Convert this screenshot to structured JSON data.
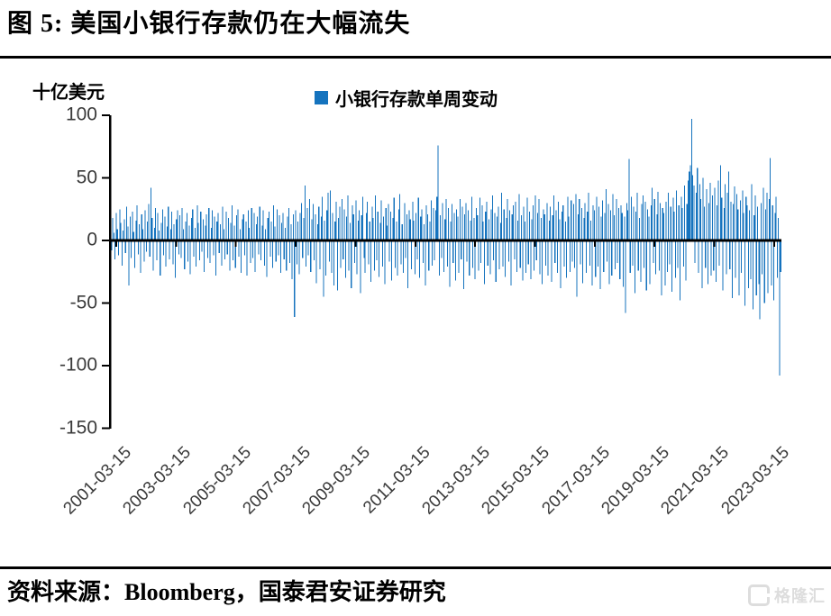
{
  "page": {
    "title": "图 5:  美国小银行存款仍在大幅流失",
    "source": "资料来源：Bloomberg，国泰君安证券研究",
    "watermark": "格隆汇"
  },
  "chart_data": {
    "type": "bar",
    "title": "美国小银行存款仍在大幅流失",
    "unit_label": "十亿美元",
    "legend": [
      "小银行存款单周变动"
    ],
    "legend_position": "top-center",
    "bar_color": "#1573BE",
    "axis_color": "#000000",
    "grid": false,
    "ylim": [
      -150,
      100
    ],
    "yticks": [
      100,
      50,
      0,
      -50,
      -100,
      -150
    ],
    "xlabel": "",
    "ylabel": "十亿美元",
    "frequency": "weekly",
    "x_start": "2001-01",
    "x_end": "2023-05",
    "xticklabels": [
      "2001-03-15",
      "2003-03-15",
      "2005-03-15",
      "2007-03-15",
      "2009-03-15",
      "2011-03-15",
      "2013-03-15",
      "2015-03-15",
      "2017-03-15",
      "2019-03-15",
      "2021-03-15",
      "2023-03-15"
    ],
    "notable_points": {
      "2011_surge": 76,
      "2020_covid_surge": 97,
      "2023_svb_outflow": -108,
      "2007_outflow": -61,
      "2023_rebound": 66
    },
    "values": [
      12,
      -8,
      18,
      6,
      -15,
      22,
      9,
      -12,
      25,
      14,
      -20,
      8,
      17,
      -10,
      27,
      11,
      -36,
      19,
      -14,
      23,
      7,
      -22,
      16,
      28,
      -11,
      13,
      -26,
      21,
      9,
      -17,
      24,
      -9,
      15,
      29,
      -13,
      42,
      18,
      -24,
      10,
      26,
      -16,
      22,
      8,
      -28,
      14,
      25,
      -12,
      19,
      -21,
      11,
      27,
      -15,
      9,
      23,
      -19,
      13,
      -30,
      17,
      24,
      -11,
      20,
      -14,
      26,
      9,
      -23,
      15,
      22,
      -17,
      12,
      -27,
      18,
      25,
      -13,
      10,
      -21,
      28,
      14,
      -16,
      23,
      -9,
      17,
      -25,
      12,
      21,
      -14,
      26,
      -18,
      10,
      24,
      -12,
      19,
      -28,
      15,
      22,
      -10,
      13,
      -20,
      27,
      9,
      -15,
      23,
      -11,
      18,
      -24,
      14,
      28,
      -16,
      12,
      -22,
      20,
      25,
      -13,
      9,
      -26,
      17,
      21,
      -12,
      15,
      -28,
      24,
      10,
      -18,
      26,
      -14,
      22,
      -25,
      13,
      19,
      -11,
      27,
      -16,
      12,
      24,
      -20,
      9,
      -29,
      18,
      23,
      -13,
      15,
      -22,
      28,
      11,
      -17,
      25,
      -12,
      20,
      -26,
      14,
      22,
      -15,
      10,
      -24,
      19,
      26,
      -18,
      13,
      -31,
      21,
      -61,
      24,
      -19,
      15,
      -27,
      22,
      30,
      -14,
      18,
      44,
      -21,
      26,
      -12,
      33,
      -25,
      17,
      29,
      -16,
      21,
      -34,
      13,
      27,
      -23,
      19,
      35,
      -45,
      16,
      -28,
      24,
      38,
      -17,
      40,
      -26,
      22,
      -36,
      15,
      31,
      -40,
      18,
      27,
      -22,
      33,
      -15,
      25,
      -30,
      19,
      36,
      -24,
      14,
      -38,
      28,
      21,
      -18,
      32,
      -27,
      16,
      24,
      -42,
      20,
      35,
      -14,
      -26,
      22,
      31,
      -19,
      15,
      -33,
      27,
      18,
      -24,
      36,
      -16,
      23,
      -29,
      14,
      32,
      -21,
      19,
      -35,
      26,
      12,
      29,
      -17,
      23,
      -32,
      18,
      34,
      -22,
      15,
      -28,
      25,
      37,
      -19,
      13,
      -26,
      30,
      -14,
      21,
      -38,
      24,
      17,
      -23,
      31,
      16,
      -27,
      22,
      -15,
      34,
      -30,
      19,
      25,
      -18,
      13,
      -36,
      28,
      21,
      -24,
      15,
      32,
      -20,
      26,
      -16,
      24,
      35,
      76,
      -28,
      20,
      -14,
      30,
      -25,
      17,
      33,
      -21,
      26,
      -37,
      15,
      29,
      -18,
      22,
      -32,
      25,
      19,
      -26,
      33,
      -15,
      27,
      -39,
      21,
      30,
      -17,
      24,
      -28,
      16,
      35,
      -22,
      18,
      -31,
      26,
      20,
      -24,
      34,
      -18,
      28,
      15,
      -35,
      23,
      31,
      -20,
      17,
      -27,
      25,
      36,
      -16,
      22,
      -33,
      19,
      27,
      -23,
      14,
      38,
      -21,
      25,
      -29,
      18,
      33,
      -17,
      24,
      -36,
      21,
      28,
      -15,
      31,
      -25,
      16,
      37,
      -22,
      20,
      -32,
      27,
      15,
      -26,
      34,
      -19,
      23,
      -31,
      17,
      28,
      -24,
      36,
      -16,
      22,
      33,
      -27,
      18,
      -35,
      25,
      21,
      -20,
      30,
      -28,
      16,
      27,
      -33,
      20,
      36,
      -18,
      24,
      -26,
      31,
      17,
      -38,
      23,
      28,
      -21,
      15,
      -30,
      35,
      19,
      -25,
      32,
      -17,
      29,
      -22,
      37,
      -45,
      21,
      33,
      -19,
      26,
      -34,
      18,
      30,
      -26,
      23,
      38,
      -20,
      16,
      -36,
      28,
      24,
      -29,
      35,
      -21,
      27,
      -39,
      19,
      32,
      -25,
      22,
      41,
      -17,
      29,
      -35,
      24,
      -28,
      37,
      20,
      -23,
      33,
      -18,
      26,
      -31,
      28,
      22,
      -37,
      19,
      -58,
      30,
      24,
      65,
      -26,
      35,
      -20,
      27,
      -42,
      23,
      38,
      -24,
      18,
      -33,
      29,
      36,
      -22,
      31,
      -40,
      25,
      19,
      -35,
      28,
      42,
      -18,
      33,
      -27,
      21,
      39,
      -24,
      30,
      -44,
      26,
      22,
      -36,
      31,
      -25,
      38,
      -19,
      27,
      -41,
      34,
      23,
      -30,
      40,
      -22,
      28,
      -48,
      35,
      26,
      -21,
      44,
      -32,
      29,
      48,
      55,
      60,
      97,
      52,
      44,
      -18,
      38,
      58,
      -26,
      45,
      33,
      -38,
      50,
      27,
      -22,
      41,
      -35,
      30,
      46,
      -28,
      36,
      -24,
      42,
      -33,
      28,
      48,
      -20,
      60,
      34,
      -40,
      26,
      45,
      -27,
      38,
      55,
      -23,
      31,
      -46,
      29,
      43,
      -30,
      37,
      25,
      -44,
      32,
      -26,
      40,
      22,
      -52,
      35,
      28,
      -38,
      24,
      -31,
      45,
      -55,
      20,
      36,
      -44,
      27,
      -35,
      -63,
      30,
      -27,
      42,
      -50,
      25,
      38,
      -42,
      33,
      66,
      -36,
      28,
      -48,
      22,
      35,
      -30,
      18,
      -108,
      -25
    ]
  }
}
